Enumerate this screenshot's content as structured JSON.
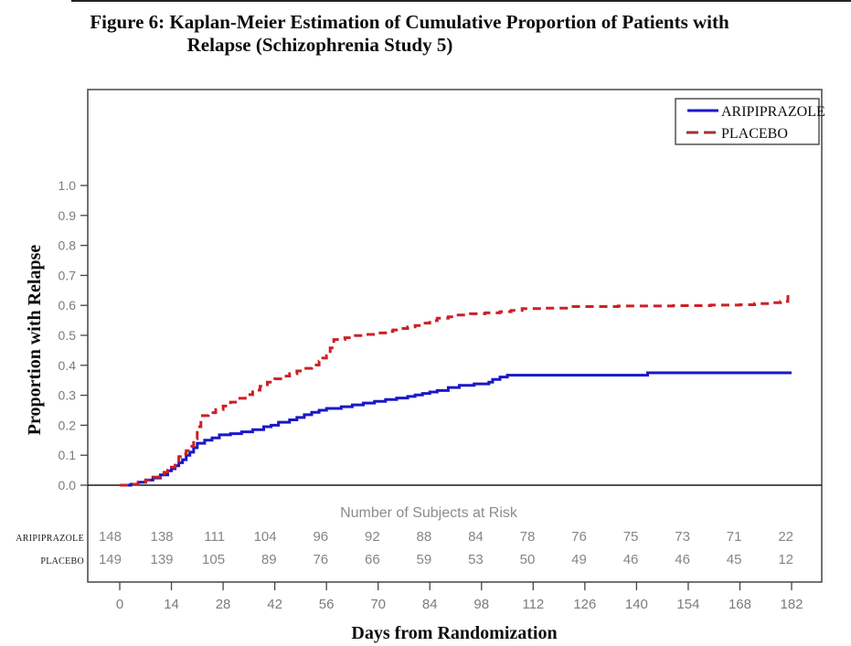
{
  "figure": {
    "title_line1": "Figure 6:  Kaplan-Meier Estimation of Cumulative Proportion of Patients with",
    "title_line2": "Relapse (Schizophrenia Study 5)"
  },
  "chart_data": {
    "type": "line",
    "subtype": "kaplan_meier_step",
    "title": "Figure 6: Kaplan-Meier Estimation of Cumulative Proportion of Patients with Relapse (Schizophrenia Study 5)",
    "xlabel": "Days from Randomization",
    "ylabel": "Proportion with Relapse",
    "xlim": [
      0,
      182
    ],
    "ylim": [
      0.0,
      1.0
    ],
    "grid": false,
    "legend_position": "top-right",
    "x_ticks": [
      0,
      14,
      28,
      42,
      56,
      70,
      84,
      98,
      112,
      126,
      140,
      154,
      168,
      182
    ],
    "y_tick_labels": [
      "0.0",
      "0.1",
      "0.2",
      "0.3",
      "0.4",
      "0.5",
      "0.6",
      "0.7",
      "0.8",
      "0.9",
      "1.0"
    ],
    "series": [
      {
        "name": "ARIPIPRAZOLE",
        "color": "#1a17c8",
        "legend_color": "#1a17c8",
        "line_style": "solid",
        "points": [
          [
            0,
            0
          ],
          [
            3,
            0.003
          ],
          [
            5,
            0.01
          ],
          [
            7,
            0.017
          ],
          [
            9,
            0.024
          ],
          [
            11,
            0.034
          ],
          [
            13,
            0.048
          ],
          [
            14,
            0.055
          ],
          [
            15,
            0.065
          ],
          [
            16,
            0.075
          ],
          [
            17,
            0.085
          ],
          [
            18,
            0.1
          ],
          [
            19,
            0.11
          ],
          [
            20,
            0.125
          ],
          [
            21,
            0.14
          ],
          [
            23,
            0.15
          ],
          [
            25,
            0.158
          ],
          [
            27,
            0.168
          ],
          [
            30,
            0.172
          ],
          [
            33,
            0.178
          ],
          [
            36,
            0.185
          ],
          [
            39,
            0.195
          ],
          [
            41,
            0.2
          ],
          [
            43,
            0.21
          ],
          [
            46,
            0.218
          ],
          [
            48,
            0.226
          ],
          [
            50,
            0.235
          ],
          [
            52,
            0.243
          ],
          [
            54,
            0.25
          ],
          [
            56,
            0.256
          ],
          [
            60,
            0.262
          ],
          [
            63,
            0.268
          ],
          [
            66,
            0.274
          ],
          [
            69,
            0.28
          ],
          [
            72,
            0.286
          ],
          [
            75,
            0.291
          ],
          [
            78,
            0.296
          ],
          [
            80,
            0.301
          ],
          [
            82,
            0.306
          ],
          [
            84,
            0.311
          ],
          [
            86,
            0.316
          ],
          [
            89,
            0.326
          ],
          [
            92,
            0.333
          ],
          [
            96,
            0.338
          ],
          [
            100,
            0.344
          ],
          [
            101,
            0.353
          ],
          [
            103,
            0.361
          ],
          [
            105,
            0.367
          ],
          [
            143,
            0.375
          ],
          [
            182,
            0.375
          ]
        ]
      },
      {
        "name": "PLACEBO",
        "color": "#cc2025",
        "legend_color": "#9b3434",
        "line_style": "dashed",
        "points": [
          [
            0,
            0
          ],
          [
            3,
            0.003
          ],
          [
            5,
            0.01
          ],
          [
            7,
            0.017
          ],
          [
            9,
            0.027
          ],
          [
            11,
            0.037
          ],
          [
            12,
            0.043
          ],
          [
            13,
            0.05
          ],
          [
            14,
            0.06
          ],
          [
            15,
            0.08
          ],
          [
            16,
            0.095
          ],
          [
            17,
            0.105
          ],
          [
            18,
            0.115
          ],
          [
            19,
            0.13
          ],
          [
            20,
            0.155
          ],
          [
            21,
            0.195
          ],
          [
            22,
            0.232
          ],
          [
            24,
            0.242
          ],
          [
            26,
            0.252
          ],
          [
            28,
            0.264
          ],
          [
            30,
            0.277
          ],
          [
            32,
            0.29
          ],
          [
            34,
            0.302
          ],
          [
            36,
            0.317
          ],
          [
            38,
            0.33
          ],
          [
            40,
            0.344
          ],
          [
            42,
            0.355
          ],
          [
            44,
            0.364
          ],
          [
            46,
            0.372
          ],
          [
            48,
            0.381
          ],
          [
            50,
            0.39
          ],
          [
            52,
            0.401
          ],
          [
            54,
            0.414
          ],
          [
            55,
            0.424
          ],
          [
            56,
            0.432
          ],
          [
            57,
            0.458
          ],
          [
            58,
            0.486
          ],
          [
            61,
            0.492
          ],
          [
            63,
            0.499
          ],
          [
            66,
            0.503
          ],
          [
            70,
            0.508
          ],
          [
            72,
            0.513
          ],
          [
            74,
            0.518
          ],
          [
            76,
            0.523
          ],
          [
            78,
            0.528
          ],
          [
            80,
            0.533
          ],
          [
            82,
            0.541
          ],
          [
            84,
            0.549
          ],
          [
            86,
            0.557
          ],
          [
            89,
            0.562
          ],
          [
            91,
            0.568
          ],
          [
            95,
            0.572
          ],
          [
            99,
            0.575
          ],
          [
            103,
            0.579
          ],
          [
            106,
            0.583
          ],
          [
            109,
            0.589
          ],
          [
            115,
            0.591
          ],
          [
            122,
            0.596
          ],
          [
            135,
            0.598
          ],
          [
            150,
            0.599
          ],
          [
            160,
            0.601
          ],
          [
            168,
            0.602
          ],
          [
            172,
            0.606
          ],
          [
            176,
            0.609
          ],
          [
            179,
            0.613
          ],
          [
            181,
            0.638
          ],
          [
            182,
            0.64
          ]
        ]
      }
    ],
    "risk_table": {
      "title": "Number of Subjects at Risk",
      "days": [
        0,
        14,
        28,
        42,
        56,
        70,
        84,
        98,
        112,
        126,
        140,
        154,
        168,
        182
      ],
      "rows": [
        {
          "label": "ARIPIPRAZOLE",
          "values": [
            148,
            138,
            111,
            104,
            96,
            92,
            88,
            84,
            78,
            76,
            75,
            73,
            71,
            22
          ]
        },
        {
          "label": "PLACEBO",
          "values": [
            149,
            139,
            105,
            89,
            76,
            66,
            59,
            53,
            50,
            49,
            46,
            46,
            45,
            12
          ]
        }
      ]
    },
    "colors": {
      "frame": "#454545",
      "zero_line": "#1a1a1a",
      "axis_text": "#7b7b7b",
      "risk_text": "#858585"
    }
  }
}
